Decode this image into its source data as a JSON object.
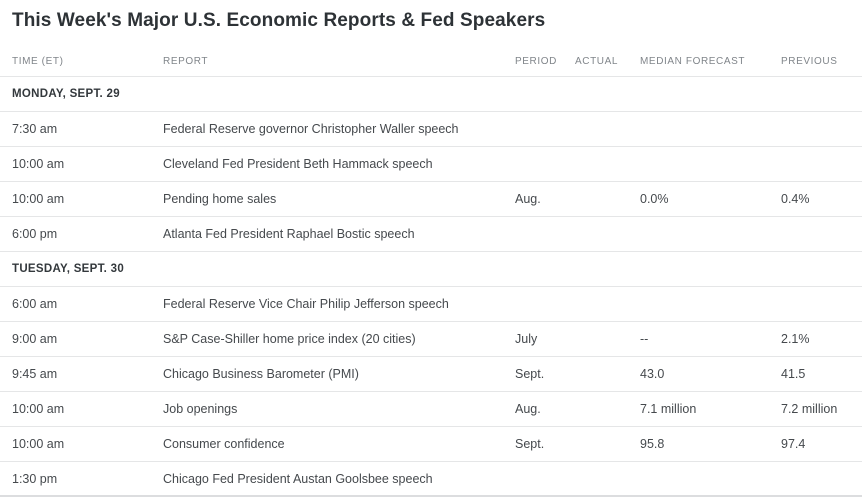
{
  "title": "This Week's Major U.S. Economic Reports & Fed Speakers",
  "columns": [
    "TIME (ET)",
    "REPORT",
    "PERIOD",
    "ACTUAL",
    "MEDIAN FORECAST",
    "PREVIOUS"
  ],
  "colors": {
    "title_text": "#2d3236",
    "header_text": "#80858a",
    "section_text": "#33383c",
    "body_text": "#45494d",
    "row_border": "#e5e6e7",
    "background": "#ffffff"
  },
  "sections": [
    {
      "label": "MONDAY, SEPT. 29",
      "rows": [
        {
          "time": "7:30 am",
          "report": "Federal Reserve governor Christopher Waller speech",
          "period": "",
          "actual": "",
          "median_forecast": "",
          "previous": ""
        },
        {
          "time": "10:00 am",
          "report": "Cleveland Fed President Beth Hammack speech",
          "period": "",
          "actual": "",
          "median_forecast": "",
          "previous": ""
        },
        {
          "time": "10:00 am",
          "report": "Pending home sales",
          "period": "Aug.",
          "actual": "",
          "median_forecast": "0.0%",
          "previous": "0.4%"
        },
        {
          "time": "6:00 pm",
          "report": "Atlanta Fed President Raphael Bostic speech",
          "period": "",
          "actual": "",
          "median_forecast": "",
          "previous": ""
        }
      ]
    },
    {
      "label": "TUESDAY, SEPT. 30",
      "rows": [
        {
          "time": "6:00 am",
          "report": "Federal Reserve Vice Chair Philip Jefferson speech",
          "period": "",
          "actual": "",
          "median_forecast": "",
          "previous": ""
        },
        {
          "time": "9:00 am",
          "report": "S&P Case-Shiller home price index (20 cities)",
          "period": "July",
          "actual": "",
          "median_forecast": "--",
          "previous": "2.1%"
        },
        {
          "time": "9:45 am",
          "report": "Chicago Business Barometer (PMI)",
          "period": "Sept.",
          "actual": "",
          "median_forecast": "43.0",
          "previous": "41.5"
        },
        {
          "time": "10:00 am",
          "report": "Job openings",
          "period": "Aug.",
          "actual": "",
          "median_forecast": "7.1 million",
          "previous": "7.2 million"
        },
        {
          "time": "10:00 am",
          "report": "Consumer confidence",
          "period": "Sept.",
          "actual": "",
          "median_forecast": "95.8",
          "previous": "97.4"
        },
        {
          "time": "1:30 pm",
          "report": "Chicago Fed President Austan Goolsbee speech",
          "period": "",
          "actual": "",
          "median_forecast": "",
          "previous": ""
        }
      ]
    }
  ]
}
